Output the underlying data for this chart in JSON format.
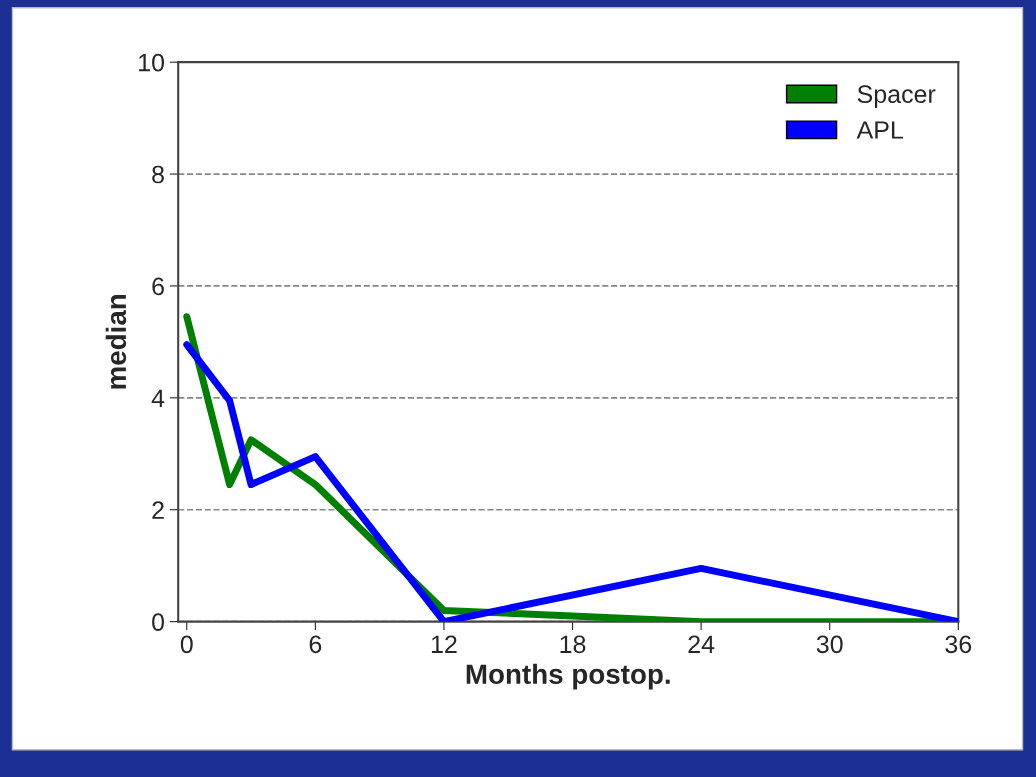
{
  "chart_data": {
    "type": "line",
    "xlabel": "Months postop.",
    "ylabel": "median",
    "xlim": [
      -0.4,
      36
    ],
    "xticks": [
      0,
      6,
      12,
      18,
      24,
      30,
      36
    ],
    "ylim": [
      0,
      10
    ],
    "yticks": [
      0,
      2,
      4,
      6,
      8,
      10
    ],
    "grid": "y",
    "legend": "top right",
    "marker": "none",
    "line_style": "solid",
    "series": [
      {
        "name": "Spacer",
        "color": "#008000",
        "x": [
          0,
          2,
          3,
          6,
          12,
          18,
          24,
          36
        ],
        "values": [
          5.45,
          2.45,
          3.25,
          2.45,
          0.2,
          0.1,
          0,
          0
        ]
      },
      {
        "name": "APL",
        "color": "#0000ff",
        "x": [
          0,
          2,
          3,
          6,
          12,
          24,
          36
        ],
        "values": [
          4.95,
          3.95,
          2.45,
          2.95,
          0,
          0.95,
          0
        ]
      }
    ]
  }
}
